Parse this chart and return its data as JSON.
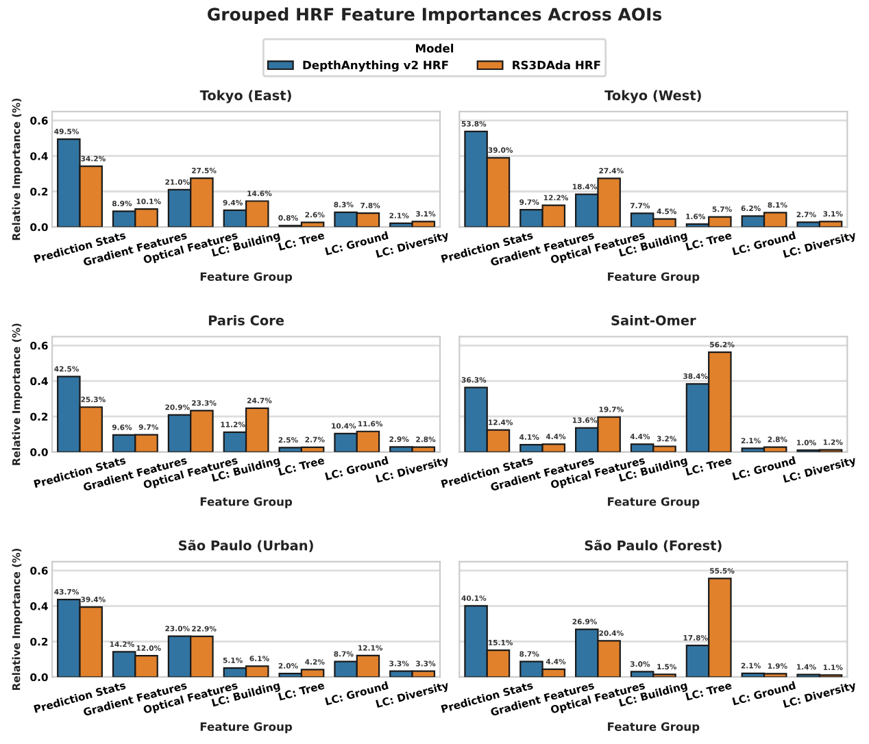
{
  "chart_data": [
    {
      "type": "bar",
      "title": "Tokyo (East)",
      "xlabel": "Feature Group",
      "ylabel": "Relative Importance (%)",
      "annotations": [
        "Grouped HRF Feature Importances Across AOIs"
      ],
      "legend": "top",
      "legend_title": "Model",
      "grid": "y",
      "categories": [
        "Prediction Stats",
        "Gradient Features",
        "Optical Features",
        "LC: Building",
        "LC: Tree",
        "LC: Ground",
        "LC: Diversity"
      ],
      "ylim": [
        0,
        0.65
      ],
      "yticks": [
        {
          "value": 0,
          "label": "0.0"
        },
        {
          "value": 0.2,
          "label": "0.2"
        },
        {
          "value": 0.4,
          "label": "0.4"
        },
        {
          "value": 0.6,
          "label": "0.6"
        }
      ],
      "series": [
        {
          "name": "DepthAnything v2 HRF",
          "color": "#3274a1",
          "values": [
            0.495,
            0.089,
            0.21,
            0.094,
            0.008,
            0.083,
            0.021
          ],
          "value_labels": [
            "49.5%",
            "8.9%",
            "21.0%",
            "9.4%",
            "0.8%",
            "8.3%",
            "2.1%"
          ]
        },
        {
          "name": "RS3DAda HRF",
          "color": "#e1812c",
          "values": [
            0.342,
            0.101,
            0.275,
            0.146,
            0.026,
            0.078,
            0.031
          ],
          "value_labels": [
            "34.2%",
            "10.1%",
            "27.5%",
            "14.6%",
            "2.6%",
            "7.8%",
            "3.1%"
          ]
        }
      ]
    },
    {
      "type": "bar",
      "title": "Tokyo (West)",
      "xlabel": "Feature Group",
      "grid": "y",
      "tick_labels": "x",
      "categories": [
        "Prediction Stats",
        "Gradient Features",
        "Optical Features",
        "LC: Building",
        "LC: Tree",
        "LC: Ground",
        "LC: Diversity"
      ],
      "ylim": [
        0,
        0.65
      ],
      "yticks": [
        {
          "value": 0,
          "label": null
        },
        {
          "value": 0.2,
          "label": null
        },
        {
          "value": 0.4,
          "label": null
        },
        {
          "value": 0.6,
          "label": null
        }
      ],
      "series": [
        {
          "color": "#3274a1",
          "values": [
            0.538,
            0.097,
            0.184,
            0.077,
            0.016,
            0.062,
            0.027
          ],
          "value_labels": [
            "53.8%",
            "9.7%",
            "18.4%",
            "7.7%",
            "1.6%",
            "6.2%",
            "2.7%"
          ]
        },
        {
          "color": "#e1812c",
          "values": [
            0.39,
            0.122,
            0.274,
            0.045,
            0.057,
            0.081,
            0.031
          ],
          "value_labels": [
            "39.0%",
            "12.2%",
            "27.4%",
            "4.5%",
            "5.7%",
            "8.1%",
            "3.1%"
          ]
        }
      ]
    },
    {
      "type": "bar",
      "title": "Paris Core",
      "xlabel": "Feature Group",
      "ylabel": "Relative Importance (%)",
      "grid": "y",
      "categories": [
        "Prediction Stats",
        "Gradient Features",
        "Optical Features",
        "LC: Building",
        "LC: Tree",
        "LC: Ground",
        "LC: Diversity"
      ],
      "ylim": [
        0,
        0.65
      ],
      "yticks": [
        {
          "value": 0,
          "label": "0.0"
        },
        {
          "value": 0.2,
          "label": "0.2"
        },
        {
          "value": 0.4,
          "label": "0.4"
        },
        {
          "value": 0.6,
          "label": "0.6"
        }
      ],
      "series": [
        {
          "color": "#3274a1",
          "values": [
            0.425,
            0.096,
            0.209,
            0.112,
            0.025,
            0.104,
            0.029
          ],
          "value_labels": [
            "42.5%",
            "9.6%",
            "20.9%",
            "11.2%",
            "2.5%",
            "10.4%",
            "2.9%"
          ]
        },
        {
          "color": "#e1812c",
          "values": [
            0.253,
            0.097,
            0.233,
            0.247,
            0.027,
            0.116,
            0.028
          ],
          "value_labels": [
            "25.3%",
            "9.7%",
            "23.3%",
            "24.7%",
            "2.7%",
            "11.6%",
            "2.8%"
          ]
        }
      ]
    },
    {
      "type": "bar",
      "title": "Saint-Omer",
      "xlabel": "Feature Group",
      "grid": "y",
      "tick_labels": "x",
      "categories": [
        "Prediction Stats",
        "Gradient Features",
        "Optical Features",
        "LC: Building",
        "LC: Tree",
        "LC: Ground",
        "LC: Diversity"
      ],
      "ylim": [
        0,
        0.65
      ],
      "yticks": [
        {
          "value": 0,
          "label": null
        },
        {
          "value": 0.2,
          "label": null
        },
        {
          "value": 0.4,
          "label": null
        },
        {
          "value": 0.6,
          "label": null
        }
      ],
      "series": [
        {
          "color": "#3274a1",
          "values": [
            0.363,
            0.041,
            0.136,
            0.044,
            0.384,
            0.021,
            0.01
          ],
          "value_labels": [
            "36.3%",
            "4.1%",
            "13.6%",
            "4.4%",
            "38.4%",
            "2.1%",
            "1.0%"
          ]
        },
        {
          "color": "#e1812c",
          "values": [
            0.124,
            0.044,
            0.197,
            0.032,
            0.562,
            0.028,
            0.012
          ],
          "value_labels": [
            "12.4%",
            "4.4%",
            "19.7%",
            "3.2%",
            "56.2%",
            "2.8%",
            "1.2%"
          ]
        }
      ]
    },
    {
      "type": "bar",
      "title": "São Paulo (Urban)",
      "xlabel": "Feature Group",
      "ylabel": "Relative Importance (%)",
      "grid": "y",
      "categories": [
        "Prediction Stats",
        "Gradient Features",
        "Optical Features",
        "LC: Building",
        "LC: Tree",
        "LC: Ground",
        "LC: Diversity"
      ],
      "ylim": [
        0,
        0.65
      ],
      "yticks": [
        {
          "value": 0,
          "label": "0.0"
        },
        {
          "value": 0.2,
          "label": "0.2"
        },
        {
          "value": 0.4,
          "label": "0.4"
        },
        {
          "value": 0.6,
          "label": "0.6"
        }
      ],
      "series": [
        {
          "color": "#3274a1",
          "values": [
            0.437,
            0.142,
            0.23,
            0.051,
            0.02,
            0.087,
            0.033
          ],
          "value_labels": [
            "43.7%",
            "14.2%",
            "23.0%",
            "5.1%",
            "2.0%",
            "8.7%",
            "3.3%"
          ]
        },
        {
          "color": "#e1812c",
          "values": [
            0.394,
            0.12,
            0.229,
            0.061,
            0.042,
            0.121,
            0.033
          ],
          "value_labels": [
            "39.4%",
            "12.0%",
            "22.9%",
            "6.1%",
            "4.2%",
            "12.1%",
            "3.3%"
          ]
        }
      ]
    },
    {
      "type": "bar",
      "title": "São Paulo (Forest)",
      "xlabel": "Feature Group",
      "grid": "y",
      "tick_labels": "x",
      "categories": [
        "Prediction Stats",
        "Gradient Features",
        "Optical Features",
        "LC: Building",
        "LC: Tree",
        "LC: Ground",
        "LC: Diversity"
      ],
      "ylim": [
        0,
        0.65
      ],
      "yticks": [
        {
          "value": 0,
          "label": null
        },
        {
          "value": 0.2,
          "label": null
        },
        {
          "value": 0.4,
          "label": null
        },
        {
          "value": 0.6,
          "label": null
        }
      ],
      "series": [
        {
          "color": "#3274a1",
          "values": [
            0.401,
            0.087,
            0.269,
            0.03,
            0.178,
            0.021,
            0.014
          ],
          "value_labels": [
            "40.1%",
            "8.7%",
            "26.9%",
            "3.0%",
            "17.8%",
            "2.1%",
            "1.4%"
          ]
        },
        {
          "color": "#e1812c",
          "values": [
            0.151,
            0.044,
            0.204,
            0.015,
            0.555,
            0.019,
            0.011
          ],
          "value_labels": [
            "15.1%",
            "4.4%",
            "20.4%",
            "1.5%",
            "55.5%",
            "1.9%",
            "1.1%"
          ]
        }
      ]
    }
  ]
}
